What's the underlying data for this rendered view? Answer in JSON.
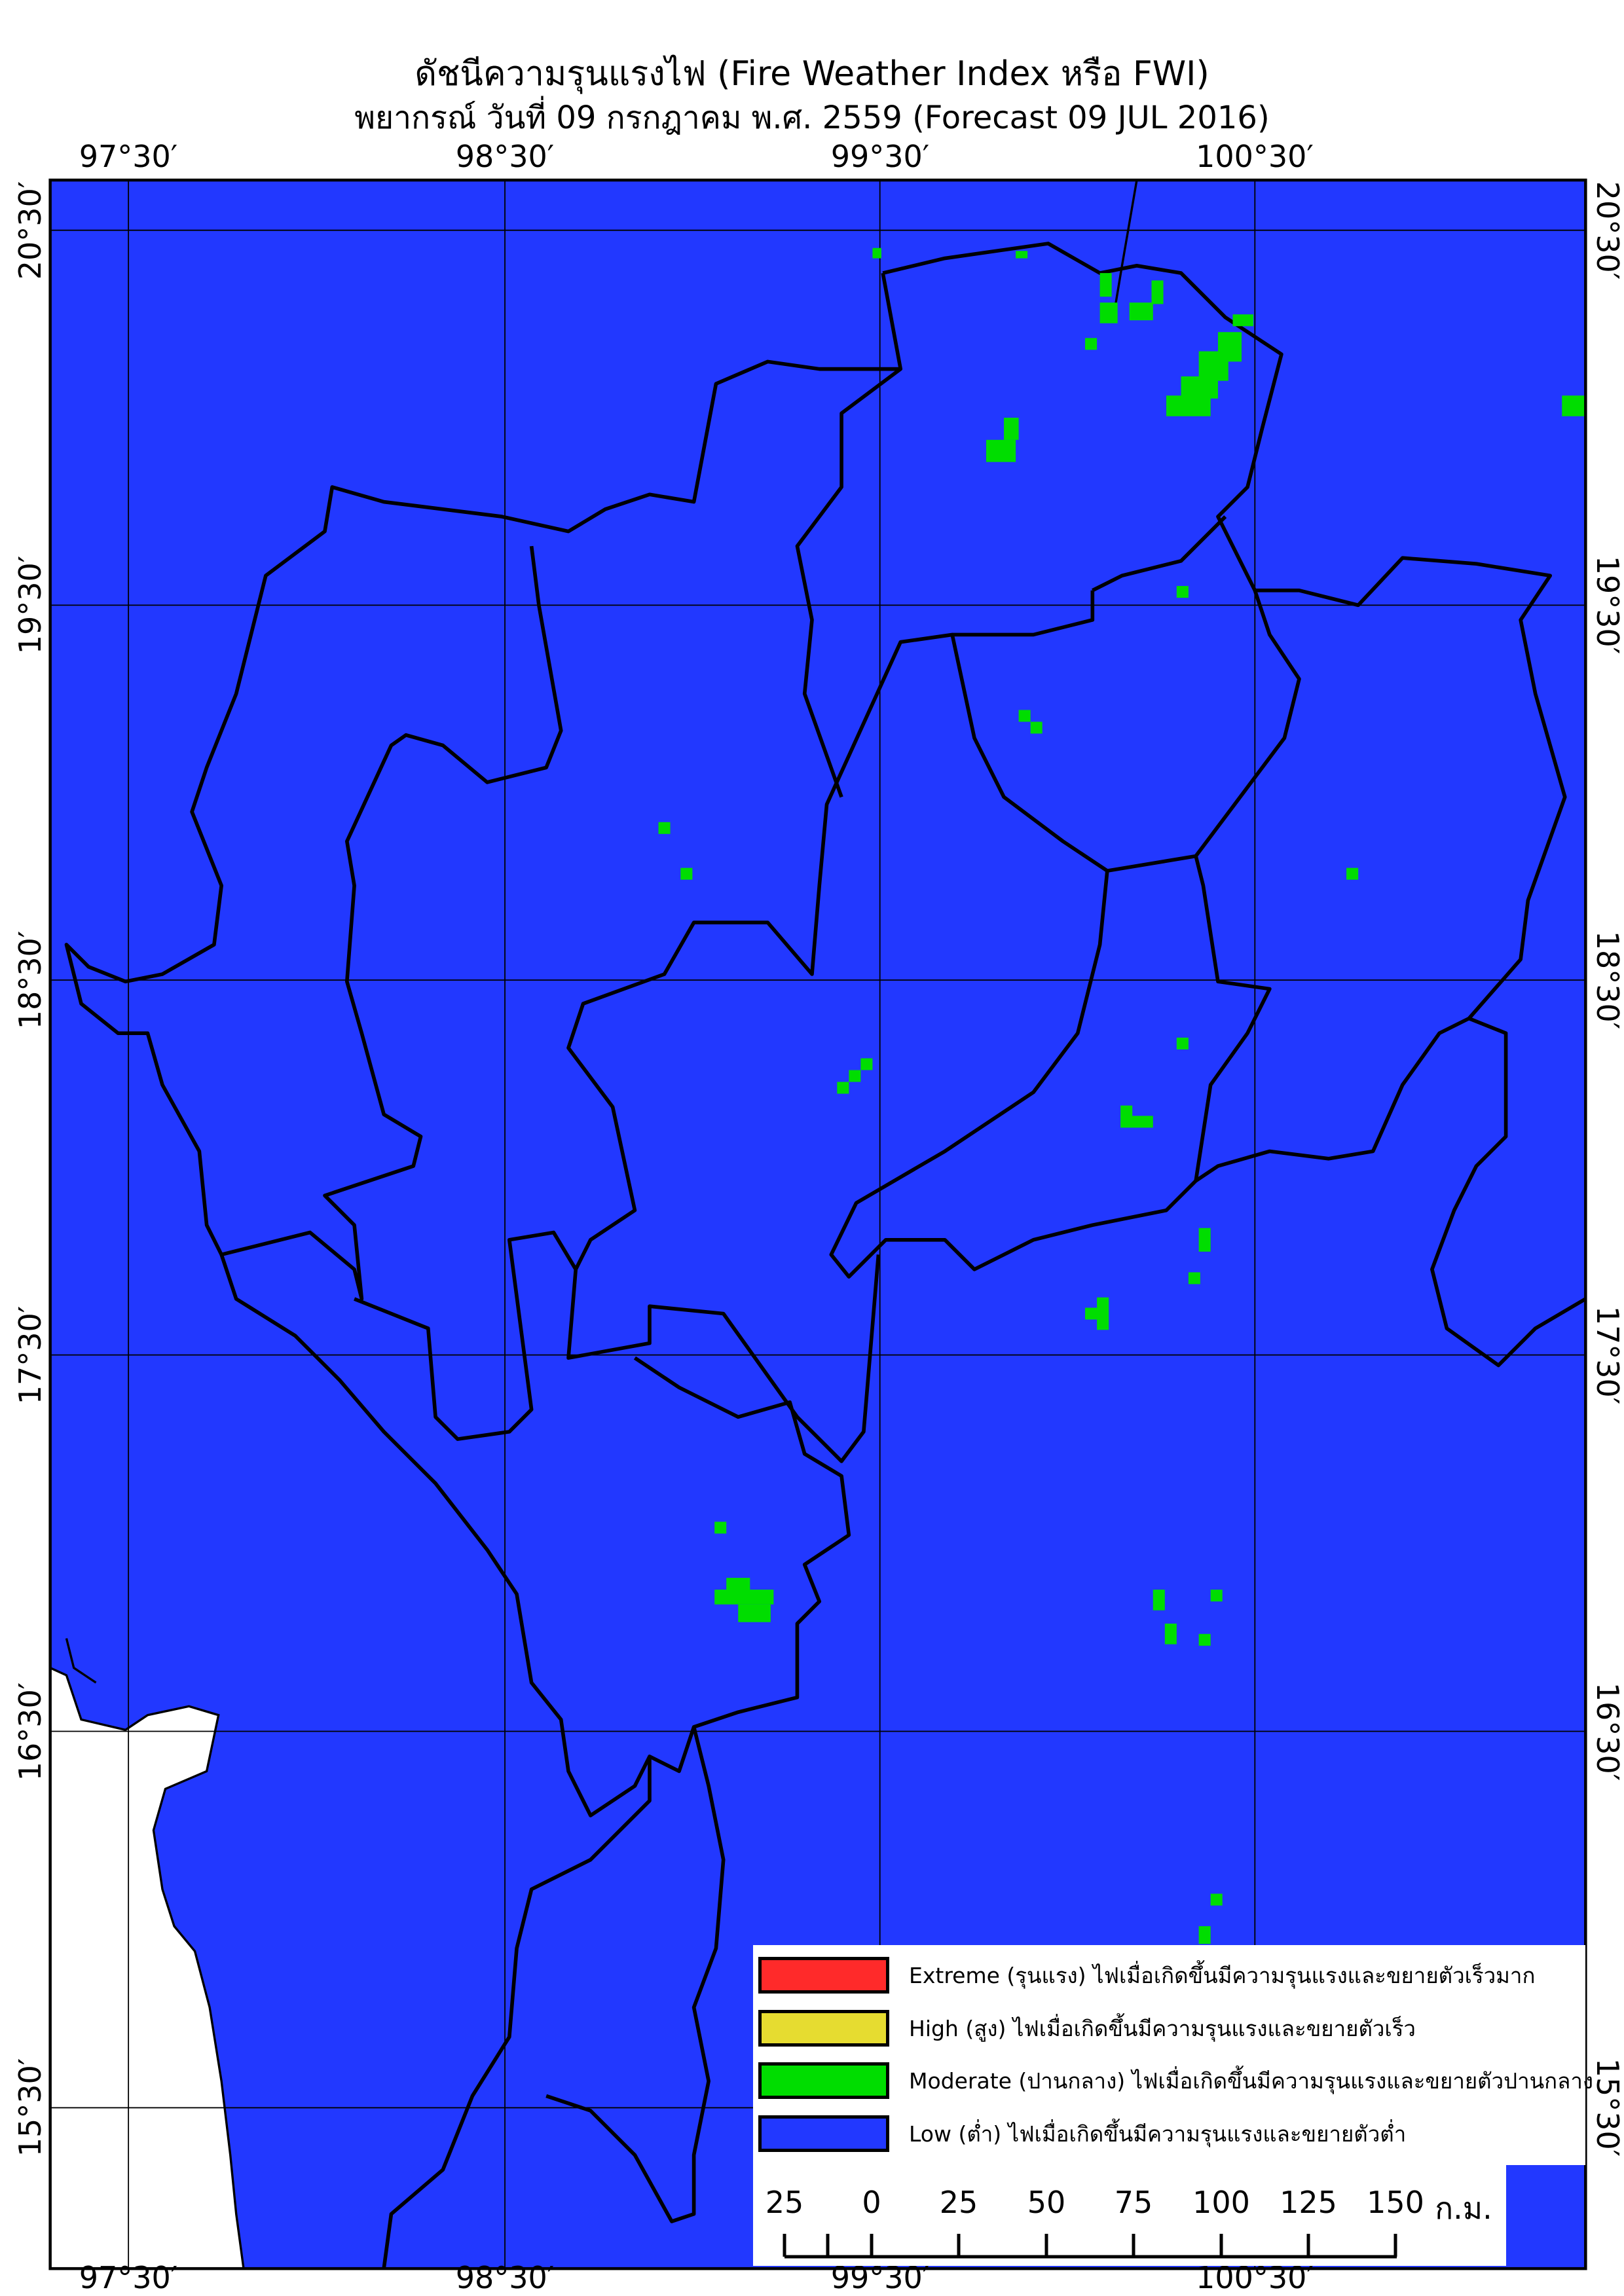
{
  "title": "ดัชนีความรุนแรงไฟ (Fire Weather Index หรือ FWI)",
  "subtitle": "พยากรณ์ วันที่ 09 กรกฎาคม พ.ศ. 2559 (Forecast 09 JUL 2016)",
  "longitude_labels": [
    "97°30′",
    "98°30′",
    "99°30′",
    "100°30′"
  ],
  "latitude_labels": [
    "20°30′",
    "19°30′",
    "18°30′",
    "17°30′",
    "16°30′",
    "15°30′"
  ],
  "colors": {
    "low": "#2238ff",
    "moderate": "#00dd00",
    "high": "#e6dc30",
    "extreme": "#ff2a2a",
    "boundary": "#000000",
    "outside": "#ffffff"
  },
  "legend": [
    {
      "class": "extreme",
      "color": "#ff2a2a",
      "label": "Extreme (รุนแรง) ไฟเมื่อเกิดขึ้นมีความรุนแรงและขยายตัวเร็วมาก"
    },
    {
      "class": "high",
      "color": "#e6dc30",
      "label": "High (สูง) ไฟเมื่อเกิดขึ้นมีความรุนแรงและขยายตัวเร็ว"
    },
    {
      "class": "moderate",
      "color": "#00dd00",
      "label": "Moderate (ปานกลาง) ไฟเมื่อเกิดขึ้นมีความรุนแรงและขยายตัวปานกลาง"
    },
    {
      "class": "low",
      "color": "#2238ff",
      "label": "Low (ต่ำ) ไฟเมื่อเกิดขึ้นมีความรุนแรงและขยายตัวต่ำ"
    }
  ],
  "scale_bar": {
    "ticks": [
      "25",
      "0",
      "25",
      "50",
      "75",
      "100",
      "125",
      "150"
    ],
    "unit": "ก.ม."
  }
}
